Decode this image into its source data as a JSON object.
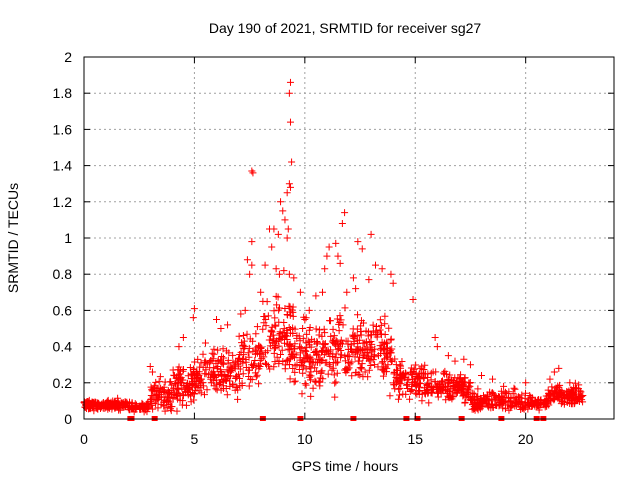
{
  "chart_data": {
    "type": "scatter",
    "title": "Day 190 of 2021, SRMTID for receiver sg27",
    "xlabel": "GPS time / hours",
    "ylabel": "SRMTID / TECUs",
    "xlim": [
      0,
      24
    ],
    "ylim": [
      0,
      2
    ],
    "xticks": [
      0,
      5,
      10,
      15,
      20
    ],
    "xtick_labels": [
      "0",
      "5",
      "10",
      "15",
      "20"
    ],
    "yticks": [
      0,
      0.2,
      0.4,
      0.6,
      0.8,
      1,
      1.2,
      1.4,
      1.6,
      1.8,
      2
    ],
    "ytick_labels": [
      "0",
      "0.2",
      "0.4",
      "0.6",
      "0.8",
      "1",
      "1.2",
      "1.4",
      "1.6",
      "1.8",
      "2"
    ],
    "grid": true,
    "marker": "+",
    "color": "#ff0000",
    "series": [
      {
        "name": "SRMTID",
        "points": [
          [
            7.6,
            1.37
          ],
          [
            7.65,
            1.36
          ],
          [
            9.35,
            1.86
          ],
          [
            9.3,
            1.8
          ],
          [
            9.35,
            1.64
          ],
          [
            9.4,
            1.42
          ],
          [
            9.3,
            1.3
          ],
          [
            9.35,
            1.28
          ],
          [
            9.2,
            1.25
          ],
          [
            8.9,
            1.2
          ],
          [
            9.0,
            1.15
          ],
          [
            9.1,
            1.1
          ],
          [
            9.25,
            1.05
          ],
          [
            9.2,
            1.0
          ],
          [
            8.8,
            1.02
          ],
          [
            8.6,
            1.05
          ],
          [
            8.4,
            1.05
          ],
          [
            8.5,
            0.95
          ],
          [
            7.6,
            0.98
          ],
          [
            7.4,
            0.88
          ],
          [
            7.6,
            0.85
          ],
          [
            7.5,
            0.8
          ],
          [
            8.2,
            0.85
          ],
          [
            8.7,
            0.83
          ],
          [
            8.85,
            0.8
          ],
          [
            9.05,
            0.82
          ],
          [
            9.3,
            0.8
          ],
          [
            9.5,
            0.78
          ],
          [
            11.8,
            1.14
          ],
          [
            11.7,
            1.08
          ],
          [
            11.4,
            0.97
          ],
          [
            11.5,
            0.9
          ],
          [
            11.6,
            0.86
          ],
          [
            11.0,
            0.9
          ],
          [
            11.1,
            0.95
          ],
          [
            10.9,
            0.83
          ],
          [
            12.4,
            0.98
          ],
          [
            12.6,
            0.94
          ],
          [
            13.0,
            1.02
          ],
          [
            13.2,
            0.85
          ],
          [
            13.5,
            0.83
          ],
          [
            13.9,
            0.8
          ],
          [
            12.9,
            0.77
          ],
          [
            12.2,
            0.78
          ],
          [
            11.9,
            0.7
          ],
          [
            12.3,
            0.72
          ],
          [
            14.0,
            0.75
          ],
          [
            14.9,
            0.66
          ],
          [
            5.0,
            0.61
          ],
          [
            4.95,
            0.56
          ],
          [
            6.5,
            0.52
          ],
          [
            6.2,
            0.5
          ],
          [
            6.0,
            0.55
          ],
          [
            7.1,
            0.58
          ],
          [
            7.3,
            0.6
          ],
          [
            3.0,
            0.29
          ],
          [
            3.1,
            0.26
          ],
          [
            4.5,
            0.45
          ],
          [
            4.3,
            0.4
          ],
          [
            5.5,
            0.42
          ],
          [
            10.2,
            0.6
          ],
          [
            10.5,
            0.68
          ],
          [
            10.8,
            0.7
          ],
          [
            10.0,
            0.55
          ],
          [
            9.8,
            0.7
          ],
          [
            9.9,
            0.5
          ],
          [
            8.0,
            0.7
          ],
          [
            8.1,
            0.65
          ],
          [
            15.9,
            0.45
          ],
          [
            16.0,
            0.4
          ],
          [
            16.5,
            0.35
          ],
          [
            16.8,
            0.32
          ],
          [
            17.2,
            0.33
          ],
          [
            17.5,
            0.3
          ],
          [
            18.0,
            0.24
          ],
          [
            18.5,
            0.22
          ],
          [
            19.0,
            0.18
          ],
          [
            20.0,
            0.2
          ],
          [
            21.1,
            0.22
          ],
          [
            21.3,
            0.26
          ],
          [
            21.5,
            0.28
          ],
          [
            22.0,
            0.2
          ],
          [
            22.5,
            0.15
          ]
        ]
      }
    ],
    "zero_markers_x": [
      2.1,
      2.15,
      3.2,
      8.1,
      9.8,
      12.2,
      14.6,
      15.1,
      17.1,
      18.9,
      20.5,
      20.8
    ]
  }
}
